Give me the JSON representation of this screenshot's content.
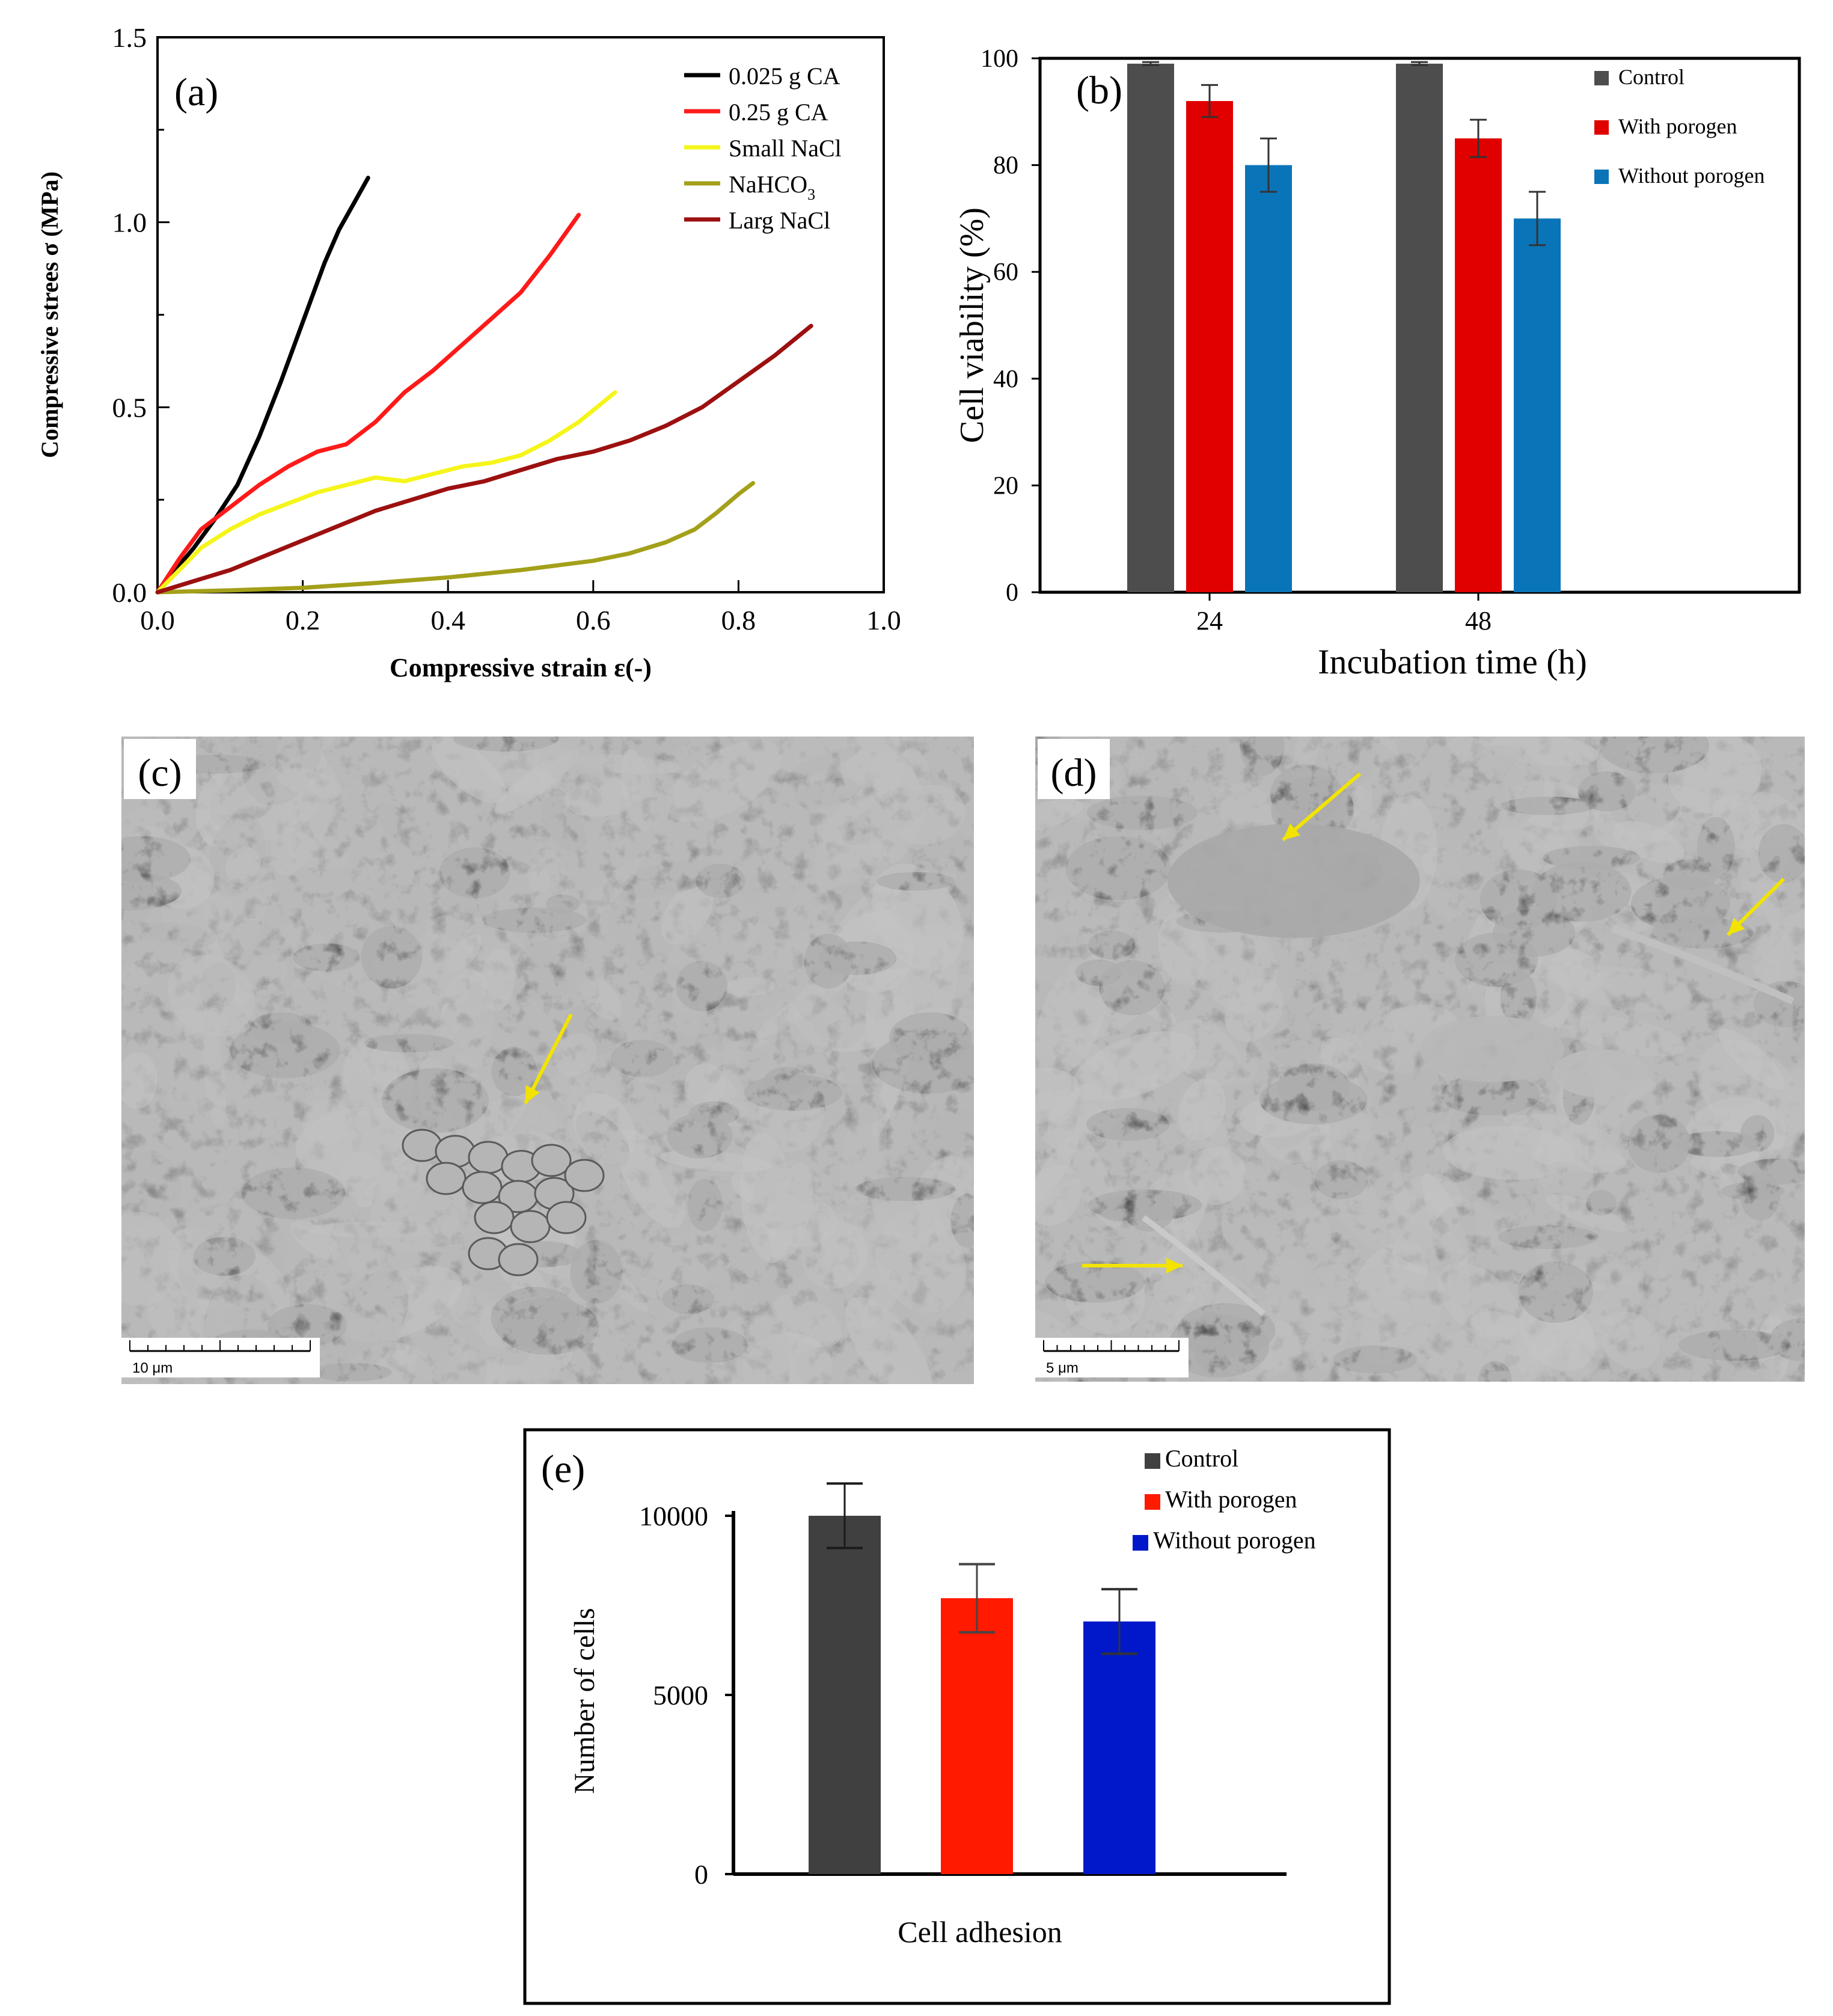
{
  "chart_data": [
    {
      "id": "a",
      "type": "line",
      "panel_label": "(a)",
      "xlabel": "Compressive strain ε(-)",
      "ylabel": "Compressive strees σ (MPa)",
      "xlim": [
        0,
        1.0
      ],
      "ylim": [
        0,
        1.5
      ],
      "xticks": [
        "0.0",
        "0.2",
        "0.4",
        "0.6",
        "0.8",
        "1.0"
      ],
      "yticks": [
        "0.0",
        "0.5",
        "1.0",
        "1.5"
      ],
      "legend_position": "top-right",
      "series": [
        {
          "name": "0.025 g CA",
          "color": "#000000",
          "x": [
            0,
            0.02,
            0.05,
            0.08,
            0.11,
            0.14,
            0.17,
            0.2,
            0.23,
            0.25,
            0.27,
            0.29
          ],
          "y": [
            0,
            0.05,
            0.12,
            0.2,
            0.29,
            0.42,
            0.57,
            0.73,
            0.89,
            0.98,
            1.05,
            1.12
          ]
        },
        {
          "name": "0.25 g CA",
          "color": "#ff1a1a",
          "x": [
            0,
            0.03,
            0.06,
            0.1,
            0.14,
            0.18,
            0.22,
            0.26,
            0.3,
            0.34,
            0.38,
            0.42,
            0.46,
            0.5,
            0.54,
            0.58
          ],
          "y": [
            0,
            0.09,
            0.17,
            0.23,
            0.29,
            0.34,
            0.38,
            0.4,
            0.46,
            0.54,
            0.6,
            0.67,
            0.74,
            0.81,
            0.91,
            1.02
          ]
        },
        {
          "name": "Small NaCl",
          "color": "#f5f51a",
          "x": [
            0,
            0.03,
            0.06,
            0.1,
            0.14,
            0.18,
            0.22,
            0.26,
            0.3,
            0.34,
            0.38,
            0.42,
            0.46,
            0.5,
            0.54,
            0.58,
            0.63
          ],
          "y": [
            0,
            0.06,
            0.12,
            0.17,
            0.21,
            0.24,
            0.27,
            0.29,
            0.31,
            0.3,
            0.32,
            0.34,
            0.35,
            0.37,
            0.41,
            0.46,
            0.54
          ]
        },
        {
          "name": "NaHCO3",
          "color": "#a3a01a",
          "x": [
            0,
            0.1,
            0.2,
            0.3,
            0.4,
            0.5,
            0.6,
            0.65,
            0.7,
            0.74,
            0.77,
            0.8,
            0.82
          ],
          "y": [
            0,
            0.005,
            0.012,
            0.025,
            0.04,
            0.06,
            0.085,
            0.105,
            0.135,
            0.17,
            0.215,
            0.265,
            0.295
          ]
        },
        {
          "name": "Larg NaCl",
          "color": "#9c1010",
          "x": [
            0,
            0.05,
            0.1,
            0.15,
            0.2,
            0.25,
            0.3,
            0.35,
            0.4,
            0.45,
            0.5,
            0.55,
            0.6,
            0.65,
            0.7,
            0.75,
            0.8,
            0.85,
            0.9
          ],
          "y": [
            0,
            0.03,
            0.06,
            0.1,
            0.14,
            0.18,
            0.22,
            0.25,
            0.28,
            0.3,
            0.33,
            0.36,
            0.38,
            0.41,
            0.45,
            0.5,
            0.57,
            0.64,
            0.72
          ]
        }
      ]
    },
    {
      "id": "b",
      "type": "bar",
      "panel_label": "(b)",
      "xlabel": "Incubation time (h)",
      "ylabel": "Cell viability (%)",
      "ylim": [
        0,
        100
      ],
      "yticks": [
        "0",
        "20",
        "40",
        "60",
        "80",
        "100"
      ],
      "categories": [
        "24",
        "48"
      ],
      "legend_position": "top-right",
      "series": [
        {
          "name": "Control",
          "color": "#4d4d4d",
          "values": [
            99,
            99
          ],
          "errors": [
            0.3,
            0.3
          ]
        },
        {
          "name": "With porogen",
          "color": "#e00000",
          "values": [
            92,
            85
          ],
          "errors": [
            3,
            3.5
          ]
        },
        {
          "name": "Without porogen",
          "color": "#0a74b8",
          "values": [
            80,
            70
          ],
          "errors": [
            5,
            5
          ]
        }
      ]
    },
    {
      "id": "e",
      "type": "bar",
      "panel_label": "(e)",
      "xlabel": "Cell adhesion",
      "ylabel": "Number of cells",
      "ylim": [
        0,
        10000
      ],
      "yticks": [
        "0",
        "5000",
        "10000"
      ],
      "legend_position": "top-right",
      "series": [
        {
          "name": "Control",
          "color": "#404040",
          "value": 10000,
          "error": 900
        },
        {
          "name": "With porogen",
          "color": "#ff1a00",
          "value": 7700,
          "error": 950
        },
        {
          "name": "Without porogen",
          "color": "#0018c9",
          "value": 7050,
          "error": 900
        }
      ]
    }
  ],
  "micrographs": {
    "c": {
      "panel_label": "(c)",
      "scale_label": "10 μm"
    },
    "d": {
      "panel_label": "(d)",
      "scale_label": "5 μm"
    }
  },
  "colors": {
    "arrow": "#f2e400"
  }
}
